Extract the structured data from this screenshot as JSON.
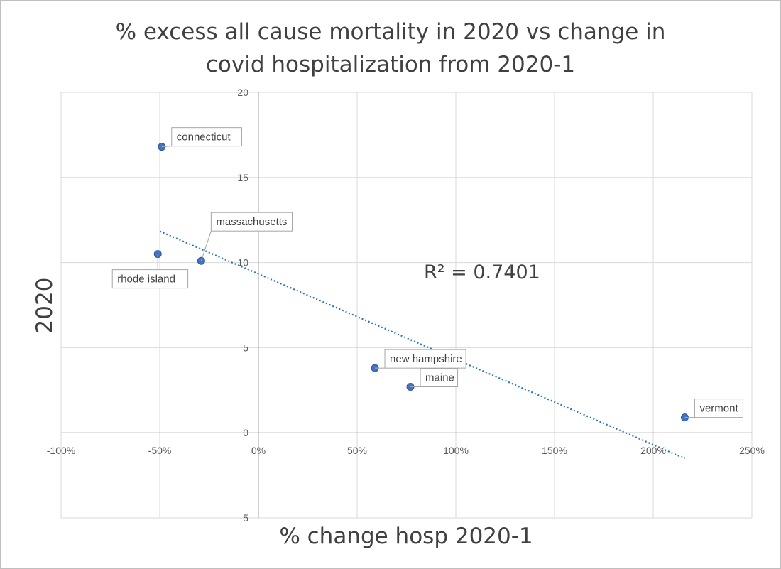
{
  "chart_data": {
    "type": "scatter",
    "title": [
      "% excess all cause mortality in 2020 vs change in",
      "covid hospitalization from 2020-1"
    ],
    "xlabel": "% change hosp 2020-1",
    "ylabel": "2020",
    "xlim": [
      -1.0,
      2.5
    ],
    "ylim": [
      -5,
      20
    ],
    "x_ticks": [
      -1.0,
      -0.5,
      0,
      0.5,
      1.0,
      1.5,
      2.0,
      2.5
    ],
    "x_tick_labels": [
      "-100%",
      "-50%",
      "0%",
      "50%",
      "100%",
      "150%",
      "200%",
      "250%"
    ],
    "y_ticks": [
      -5,
      0,
      5,
      10,
      15,
      20
    ],
    "y_tick_labels": [
      "-5",
      "0",
      "5",
      "10",
      "15",
      "20"
    ],
    "grid": true,
    "color": "#4472c4",
    "points": [
      {
        "label": "connecticut",
        "x": -0.49,
        "y": 16.8
      },
      {
        "label": "massachusetts",
        "x": -0.29,
        "y": 10.1
      },
      {
        "label": "rhode island",
        "x": -0.51,
        "y": 10.5
      },
      {
        "label": "new hampshire",
        "x": 0.59,
        "y": 3.8
      },
      {
        "label": "maine",
        "x": 0.77,
        "y": 2.7
      },
      {
        "label": "vermont",
        "x": 2.16,
        "y": 0.9
      }
    ],
    "trendline": {
      "type": "linear",
      "style": "dotted",
      "x_range": [
        -0.5,
        2.16
      ],
      "r_squared_label": "R² = 0.7401"
    }
  }
}
